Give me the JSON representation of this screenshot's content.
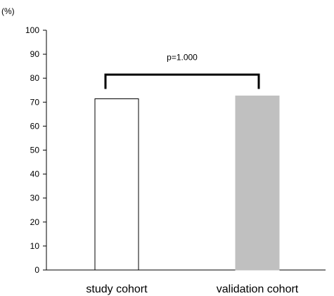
{
  "chart_data": {
    "type": "bar",
    "ylabel": "(%)",
    "ylim": [
      0,
      100
    ],
    "yticks": [
      0,
      10,
      20,
      30,
      40,
      50,
      60,
      70,
      80,
      90,
      100
    ],
    "categories": [
      "study cohort",
      "validation cohort"
    ],
    "values": [
      71.4,
      72.6
    ],
    "bar_colors": [
      "#ffffff",
      "#c0c0c0"
    ],
    "bar_edge_colors": [
      "#000000",
      "#c0c0c0"
    ],
    "grid": false,
    "annotation": {
      "text": "p=1.000",
      "type": "significance-bracket",
      "between": [
        "study cohort",
        "validation cohort"
      ]
    }
  }
}
